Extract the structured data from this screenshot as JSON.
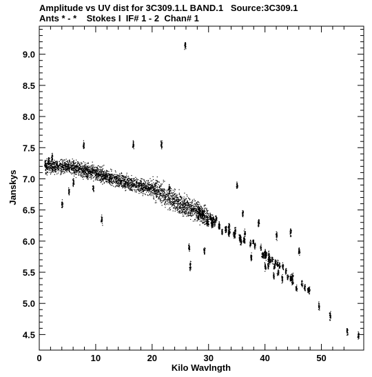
{
  "header": {
    "title_line1": "Amplitude vs UV dist for 3C309.1.L BAND.1   Source:3C309.1",
    "title_line2": "Ants * - *    Stokes I  IF# 1 - 2  Chan# 1"
  },
  "chart_data": {
    "type": "scatter",
    "title": "Amplitude vs UV dist for 3C309.1.L BAND.1   Source:3C309.1",
    "subtitle": "Ants * - *    Stokes I  IF# 1 - 2  Chan# 1",
    "xlabel": "Kilo Wavlngth",
    "ylabel": "Janskys",
    "xlim": [
      0,
      57.5
    ],
    "ylim": [
      4.25,
      9.45
    ],
    "xticks": [
      0,
      10,
      20,
      30,
      40,
      50
    ],
    "xtick_labels": [
      "0",
      "10",
      "20",
      "30",
      "40",
      "50"
    ],
    "yticks": [
      4.5,
      5.0,
      5.5,
      6.0,
      6.5,
      7.0,
      7.5,
      8.0,
      8.5,
      9.0
    ],
    "ytick_labels": [
      "4.5",
      "5.0",
      "5.5",
      "6.0",
      "6.5",
      "7.0",
      "7.5",
      "8.0",
      "8.5",
      "9.0"
    ],
    "grid": false,
    "marker_color": "#000000",
    "trend": {
      "x": [
        1,
        5,
        10,
        15,
        20,
        22,
        25,
        28,
        30,
        33,
        36,
        39,
        42,
        45,
        48,
        50,
        53,
        56.5
      ],
      "y": [
        7.2,
        7.2,
        7.1,
        6.95,
        6.85,
        6.75,
        6.6,
        6.5,
        6.35,
        6.2,
        6.05,
        5.85,
        5.6,
        5.4,
        5.2,
        5.0,
        4.75,
        4.5
      ]
    },
    "clusters": [
      {
        "x": 1.0,
        "y": 7.25
      },
      {
        "x": 1.6,
        "y": 7.3
      },
      {
        "x": 2.2,
        "y": 7.35
      },
      {
        "x": 4.0,
        "y": 6.6
      },
      {
        "x": 5.2,
        "y": 6.8
      },
      {
        "x": 6.0,
        "y": 6.95
      },
      {
        "x": 7.8,
        "y": 7.55
      },
      {
        "x": 9.5,
        "y": 6.85
      },
      {
        "x": 11.0,
        "y": 6.35
      },
      {
        "x": 16.6,
        "y": 7.55
      },
      {
        "x": 21.6,
        "y": 7.55
      },
      {
        "x": 23.0,
        "y": 6.85
      },
      {
        "x": 25.8,
        "y": 9.15
      },
      {
        "x": 26.5,
        "y": 5.9
      },
      {
        "x": 26.7,
        "y": 5.6
      },
      {
        "x": 29.2,
        "y": 5.85
      },
      {
        "x": 33.0,
        "y": 6.2
      },
      {
        "x": 35.0,
        "y": 6.9
      },
      {
        "x": 36.0,
        "y": 6.45
      },
      {
        "x": 37.5,
        "y": 5.75
      },
      {
        "x": 38.8,
        "y": 6.3
      },
      {
        "x": 40.0,
        "y": 5.6
      },
      {
        "x": 41.5,
        "y": 5.45
      },
      {
        "x": 42.0,
        "y": 6.1
      },
      {
        "x": 43.0,
        "y": 5.4
      },
      {
        "x": 44.5,
        "y": 6.15
      },
      {
        "x": 46.0,
        "y": 5.85
      },
      {
        "x": 45.5,
        "y": 5.25
      },
      {
        "x": 47.0,
        "y": 5.25
      },
      {
        "x": 49.5,
        "y": 4.95
      },
      {
        "x": 51.5,
        "y": 4.8
      },
      {
        "x": 54.5,
        "y": 4.55
      },
      {
        "x": 56.5,
        "y": 4.5
      }
    ]
  }
}
